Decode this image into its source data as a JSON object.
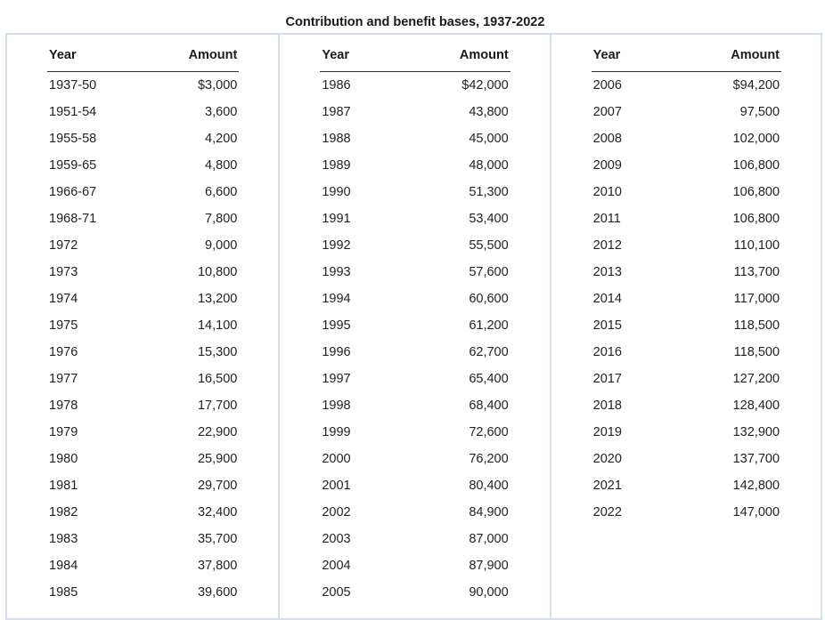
{
  "title": "Contribution and benefit bases, 1937-2022",
  "headers": {
    "year": "Year",
    "amount": "Amount"
  },
  "columns": [
    {
      "rows": [
        [
          "1937-50",
          "$3,000"
        ],
        [
          "1951-54",
          "3,600"
        ],
        [
          "1955-58",
          "4,200"
        ],
        [
          "1959-65",
          "4,800"
        ],
        [
          "1966-67",
          "6,600"
        ],
        [
          "1968-71",
          "7,800"
        ],
        [
          "1972",
          "9,000"
        ],
        [
          "1973",
          "10,800"
        ],
        [
          "1974",
          "13,200"
        ],
        [
          "1975",
          "14,100"
        ],
        [
          "1976",
          "15,300"
        ],
        [
          "1977",
          "16,500"
        ],
        [
          "1978",
          "17,700"
        ],
        [
          "1979",
          "22,900"
        ],
        [
          "1980",
          "25,900"
        ],
        [
          "1981",
          "29,700"
        ],
        [
          "1982",
          "32,400"
        ],
        [
          "1983",
          "35,700"
        ],
        [
          "1984",
          "37,800"
        ],
        [
          "1985",
          "39,600"
        ]
      ]
    },
    {
      "rows": [
        [
          "1986",
          "$42,000"
        ],
        [
          "1987",
          "43,800"
        ],
        [
          "1988",
          "45,000"
        ],
        [
          "1989",
          "48,000"
        ],
        [
          "1990",
          "51,300"
        ],
        [
          "1991",
          "53,400"
        ],
        [
          "1992",
          "55,500"
        ],
        [
          "1993",
          "57,600"
        ],
        [
          "1994",
          "60,600"
        ],
        [
          "1995",
          "61,200"
        ],
        [
          "1996",
          "62,700"
        ],
        [
          "1997",
          "65,400"
        ],
        [
          "1998",
          "68,400"
        ],
        [
          "1999",
          "72,600"
        ],
        [
          "2000",
          "76,200"
        ],
        [
          "2001",
          "80,400"
        ],
        [
          "2002",
          "84,900"
        ],
        [
          "2003",
          "87,000"
        ],
        [
          "2004",
          "87,900"
        ],
        [
          "2005",
          "90,000"
        ]
      ]
    },
    {
      "rows": [
        [
          "2006",
          "$94,200"
        ],
        [
          "2007",
          "97,500"
        ],
        [
          "2008",
          "102,000"
        ],
        [
          "2009",
          "106,800"
        ],
        [
          "2010",
          "106,800"
        ],
        [
          "2011",
          "106,800"
        ],
        [
          "2012",
          "110,100"
        ],
        [
          "2013",
          "113,700"
        ],
        [
          "2014",
          "117,000"
        ],
        [
          "2015",
          "118,500"
        ],
        [
          "2016",
          "118,500"
        ],
        [
          "2017",
          "127,200"
        ],
        [
          "2018",
          "128,400"
        ],
        [
          "2019",
          "132,900"
        ],
        [
          "2020",
          "137,700"
        ],
        [
          "2021",
          "142,800"
        ],
        [
          "2022",
          "147,000"
        ]
      ]
    }
  ]
}
